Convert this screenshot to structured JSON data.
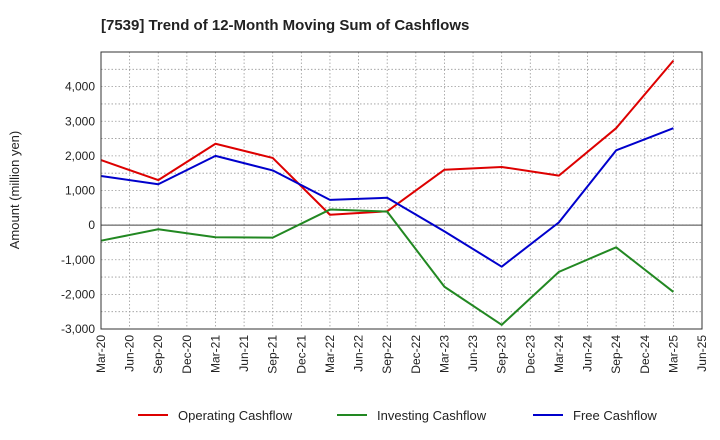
{
  "chart_data": {
    "type": "line",
    "title": "[7539]  Trend of 12-Month Moving Sum of Cashflows",
    "ylabel": "Amount (million yen)",
    "xlabel": "",
    "x_ticks": [
      "Mar-20",
      "Jun-20",
      "Sep-20",
      "Dec-20",
      "Mar-21",
      "Jun-21",
      "Sep-21",
      "Dec-21",
      "Mar-22",
      "Jun-22",
      "Sep-22",
      "Dec-22",
      "Mar-23",
      "Jun-23",
      "Sep-23",
      "Dec-23",
      "Mar-24",
      "Jun-24",
      "Sep-24",
      "Dec-24",
      "Mar-25",
      "Jun-25"
    ],
    "y_ticks": [
      "-3,000",
      "-2,000",
      "-1,000",
      "0",
      "1,000",
      "2,000",
      "3,000",
      "4,000"
    ],
    "ylim": [
      -3000,
      5000
    ],
    "grid": true,
    "legend_position": "bottom",
    "x": [
      "Mar-20",
      "Sep-20",
      "Mar-21",
      "Sep-21",
      "Mar-22",
      "Sep-22",
      "Mar-23",
      "Sep-23",
      "Mar-24",
      "Sep-24",
      "Mar-25"
    ],
    "series": [
      {
        "name": "Operating Cashflow",
        "color": "#dd0000",
        "values": [
          1880,
          1300,
          2350,
          1940,
          300,
          400,
          1600,
          1680,
          1430,
          2800,
          4750
        ]
      },
      {
        "name": "Investing Cashflow",
        "color": "#228822",
        "values": [
          -450,
          -120,
          -350,
          -360,
          450,
          390,
          -1780,
          -2880,
          -1350,
          -640,
          -1930
        ]
      },
      {
        "name": "Free Cashflow",
        "color": "#0000cc",
        "values": [
          1420,
          1180,
          2000,
          1580,
          730,
          790,
          -180,
          -1200,
          80,
          2160,
          2800
        ]
      }
    ]
  }
}
